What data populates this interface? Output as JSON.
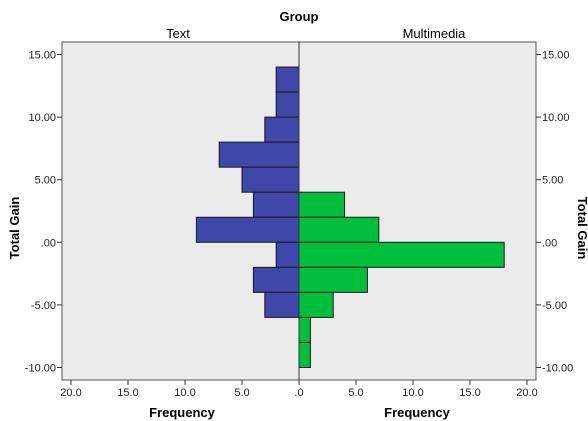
{
  "chart_data": {
    "type": "bar",
    "orientation": "horizontal",
    "layout": "back-to-back population pyramid",
    "title": "Group",
    "panels": [
      {
        "name": "Text",
        "color": "#3f48a8",
        "side": "left"
      },
      {
        "name": "Multimedia",
        "color": "#00bf3c",
        "side": "right"
      }
    ],
    "bin_centers": [
      13,
      11,
      9,
      7,
      5,
      3,
      1,
      -1,
      -3,
      -5,
      -7,
      -9
    ],
    "series": [
      {
        "name": "Text",
        "values": [
          2,
          2,
          3,
          7,
          5,
          4,
          9,
          2,
          4,
          3,
          0,
          0
        ]
      },
      {
        "name": "Multimedia",
        "values": [
          0,
          0,
          0,
          0,
          0,
          4,
          7,
          18,
          6,
          3,
          1,
          1
        ]
      }
    ],
    "ylabel": "Total Gain",
    "ylim": [
      -11,
      16
    ],
    "yticks": [
      15,
      10,
      5,
      0,
      -5,
      -10
    ],
    "ytick_labels": [
      "15.00",
      "10.00",
      "5.00",
      ".00",
      "-5.00",
      "-10.00"
    ],
    "xlabel": "Frequency",
    "xlim": [
      0,
      20
    ],
    "left_xtick_values": [
      20,
      15,
      10,
      5,
      0
    ],
    "left_xtick_labels": [
      "20.0",
      "15.0",
      "10.0",
      "5.0",
      ".0"
    ],
    "right_xtick_values": [
      5,
      10,
      15,
      20
    ],
    "right_xtick_labels": [
      "5.0",
      "10.0",
      "15.0",
      "20.0"
    ],
    "plot_background": "#ebebeb",
    "grid": false,
    "legend": "none"
  }
}
